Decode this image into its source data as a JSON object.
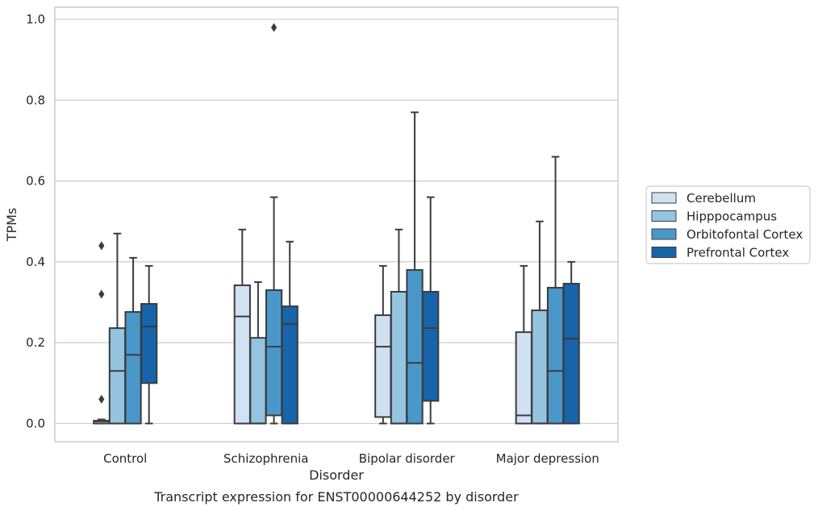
{
  "caption": "Transcript expression for ENST00000644252 by disorder",
  "chart_data": {
    "type": "boxplot",
    "title": "",
    "xlabel": "Disorder",
    "ylabel": "TPMs",
    "ylim": [
      -0.045,
      1.03
    ],
    "yticks": [
      "0.0",
      "0.2",
      "0.4",
      "0.6",
      "0.8",
      "1.0"
    ],
    "grid": "horizontal",
    "legend_position": "right",
    "categories": [
      "Control",
      "Schizophrenia",
      "Bipolar disorder",
      "Major depression"
    ],
    "series": [
      {
        "name": "Cerebellum",
        "color": "#d0e1f2",
        "boxes": [
          {
            "low": 0.0,
            "q1": 0.0,
            "median": 0.005,
            "q3": 0.007,
            "high": 0.01,
            "outliers": [
              0.06,
              0.32,
              0.44
            ]
          },
          {
            "low": 0.0,
            "q1": 0.0,
            "median": 0.265,
            "q3": 0.342,
            "high": 0.48,
            "outliers": []
          },
          {
            "low": 0.0,
            "q1": 0.016,
            "median": 0.19,
            "q3": 0.268,
            "high": 0.39,
            "outliers": []
          },
          {
            "low": 0.0,
            "q1": 0.0,
            "median": 0.02,
            "q3": 0.226,
            "high": 0.39,
            "outliers": []
          }
        ]
      },
      {
        "name": "Hipppocampus",
        "color": "#94c4df",
        "boxes": [
          {
            "low": 0.0,
            "q1": 0.0,
            "median": 0.13,
            "q3": 0.236,
            "high": 0.47,
            "outliers": []
          },
          {
            "low": 0.0,
            "q1": 0.0,
            "median": 0.0,
            "q3": 0.212,
            "high": 0.35,
            "outliers": []
          },
          {
            "low": 0.0,
            "q1": 0.0,
            "median": 0.0,
            "q3": 0.326,
            "high": 0.48,
            "outliers": []
          },
          {
            "low": 0.0,
            "q1": 0.0,
            "median": 0.0,
            "q3": 0.28,
            "high": 0.5,
            "outliers": []
          }
        ]
      },
      {
        "name": "Orbitofontal Cortex",
        "color": "#4a98c9",
        "boxes": [
          {
            "low": 0.0,
            "q1": 0.0,
            "median": 0.17,
            "q3": 0.276,
            "high": 0.41,
            "outliers": []
          },
          {
            "low": 0.0,
            "q1": 0.02,
            "median": 0.19,
            "q3": 0.33,
            "high": 0.56,
            "outliers": [
              0.98
            ]
          },
          {
            "low": 0.0,
            "q1": 0.0,
            "median": 0.15,
            "q3": 0.38,
            "high": 0.77,
            "outliers": []
          },
          {
            "low": 0.0,
            "q1": 0.0,
            "median": 0.13,
            "q3": 0.336,
            "high": 0.66,
            "outliers": []
          }
        ]
      },
      {
        "name": "Prefrontal Cortex",
        "color": "#1764ab",
        "boxes": [
          {
            "low": 0.0,
            "q1": 0.1,
            "median": 0.24,
            "q3": 0.296,
            "high": 0.39,
            "outliers": []
          },
          {
            "low": 0.0,
            "q1": 0.0,
            "median": 0.246,
            "q3": 0.29,
            "high": 0.45,
            "outliers": []
          },
          {
            "low": 0.0,
            "q1": 0.056,
            "median": 0.236,
            "q3": 0.326,
            "high": 0.56,
            "outliers": []
          },
          {
            "low": 0.0,
            "q1": 0.0,
            "median": 0.21,
            "q3": 0.346,
            "high": 0.4,
            "outliers": []
          }
        ]
      }
    ]
  }
}
